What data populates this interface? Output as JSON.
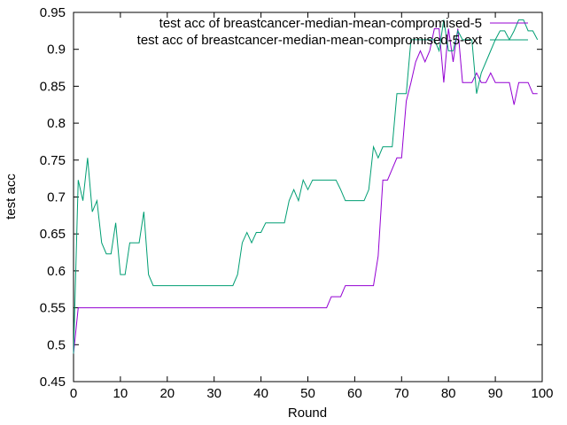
{
  "chart_data": {
    "type": "line",
    "title": "",
    "xlabel": "Round",
    "ylabel": "test acc",
    "xlim": [
      0,
      100
    ],
    "ylim": [
      0.45,
      0.95
    ],
    "xticks": [
      0,
      10,
      20,
      30,
      40,
      50,
      60,
      70,
      80,
      90,
      100
    ],
    "yticks": [
      0.45,
      0.5,
      0.55,
      0.6,
      0.65,
      0.7,
      0.75,
      0.8,
      0.85,
      0.9,
      0.95
    ],
    "ytick_labels": [
      "0.45",
      "0.5",
      "0.55",
      "0.6",
      "0.65",
      "0.7",
      "0.75",
      "0.8",
      "0.85",
      "0.9",
      "0.95"
    ],
    "grid": false,
    "legend_position": "top-right",
    "series": [
      {
        "name": "test acc of breastcancer-median-mean-compromised-5",
        "color": "#9400d3",
        "x": [
          0,
          1,
          2,
          3,
          4,
          5,
          6,
          7,
          8,
          9,
          10,
          11,
          12,
          13,
          14,
          15,
          16,
          17,
          18,
          19,
          20,
          21,
          22,
          23,
          24,
          25,
          26,
          27,
          28,
          29,
          30,
          31,
          32,
          33,
          34,
          35,
          36,
          37,
          38,
          39,
          40,
          41,
          42,
          43,
          44,
          45,
          46,
          47,
          48,
          49,
          50,
          51,
          52,
          53,
          54,
          55,
          56,
          57,
          58,
          59,
          60,
          61,
          62,
          63,
          64,
          65,
          66,
          67,
          68,
          69,
          70,
          71,
          72,
          73,
          74,
          75,
          76,
          77,
          78,
          79,
          80,
          81,
          82,
          83,
          84,
          85,
          86,
          87,
          88,
          89,
          90,
          91,
          92,
          93,
          94,
          95,
          96,
          97,
          98,
          99
        ],
        "y": [
          0.488,
          0.55,
          0.55,
          0.55,
          0.55,
          0.55,
          0.55,
          0.55,
          0.55,
          0.55,
          0.55,
          0.55,
          0.55,
          0.55,
          0.55,
          0.55,
          0.55,
          0.55,
          0.55,
          0.55,
          0.55,
          0.55,
          0.55,
          0.55,
          0.55,
          0.55,
          0.55,
          0.55,
          0.55,
          0.55,
          0.55,
          0.55,
          0.55,
          0.55,
          0.55,
          0.55,
          0.55,
          0.55,
          0.55,
          0.55,
          0.55,
          0.55,
          0.55,
          0.55,
          0.55,
          0.55,
          0.55,
          0.55,
          0.55,
          0.55,
          0.55,
          0.55,
          0.55,
          0.55,
          0.55,
          0.565,
          0.565,
          0.565,
          0.58,
          0.58,
          0.58,
          0.58,
          0.58,
          0.58,
          0.58,
          0.62,
          0.723,
          0.723,
          0.738,
          0.753,
          0.753,
          0.83,
          0.855,
          0.883,
          0.898,
          0.883,
          0.898,
          0.928,
          0.928,
          0.855,
          0.928,
          0.883,
          0.928,
          0.855,
          0.855,
          0.855,
          0.868,
          0.855,
          0.855,
          0.868,
          0.855,
          0.855,
          0.855,
          0.855,
          0.825,
          0.855,
          0.855,
          0.855,
          0.84,
          0.84
        ]
      },
      {
        "name": "test acc of breastcancer-median-mean-compromised-5-ext",
        "color": "#009e73",
        "x": [
          0,
          1,
          2,
          3,
          4,
          5,
          6,
          7,
          8,
          9,
          10,
          11,
          12,
          13,
          14,
          15,
          16,
          17,
          18,
          19,
          20,
          21,
          22,
          23,
          24,
          25,
          26,
          27,
          28,
          29,
          30,
          31,
          32,
          33,
          34,
          35,
          36,
          37,
          38,
          39,
          40,
          41,
          42,
          43,
          44,
          45,
          46,
          47,
          48,
          49,
          50,
          51,
          52,
          53,
          54,
          55,
          56,
          57,
          58,
          59,
          60,
          61,
          62,
          63,
          64,
          65,
          66,
          67,
          68,
          69,
          70,
          71,
          72,
          73,
          74,
          75,
          76,
          77,
          78,
          79,
          80,
          81,
          82,
          83,
          84,
          85,
          86,
          87,
          88,
          89,
          90,
          91,
          92,
          93,
          94,
          95,
          96,
          97,
          98,
          99
        ],
        "y": [
          0.488,
          0.723,
          0.695,
          0.753,
          0.68,
          0.695,
          0.638,
          0.623,
          0.623,
          0.665,
          0.595,
          0.595,
          0.638,
          0.638,
          0.638,
          0.68,
          0.595,
          0.58,
          0.58,
          0.58,
          0.58,
          0.58,
          0.58,
          0.58,
          0.58,
          0.58,
          0.58,
          0.58,
          0.58,
          0.58,
          0.58,
          0.58,
          0.58,
          0.58,
          0.58,
          0.595,
          0.638,
          0.652,
          0.638,
          0.652,
          0.652,
          0.665,
          0.665,
          0.665,
          0.665,
          0.665,
          0.695,
          0.71,
          0.695,
          0.723,
          0.71,
          0.723,
          0.723,
          0.723,
          0.723,
          0.723,
          0.723,
          0.71,
          0.695,
          0.695,
          0.695,
          0.695,
          0.695,
          0.71,
          0.768,
          0.753,
          0.768,
          0.768,
          0.768,
          0.84,
          0.84,
          0.84,
          0.913,
          0.913,
          0.913,
          0.913,
          0.913,
          0.913,
          0.898,
          0.94,
          0.898,
          0.898,
          0.925,
          0.913,
          0.913,
          0.913,
          0.84,
          0.868,
          0.883,
          0.898,
          0.913,
          0.925,
          0.925,
          0.913,
          0.925,
          0.94,
          0.94,
          0.925,
          0.925,
          0.913
        ]
      }
    ]
  }
}
